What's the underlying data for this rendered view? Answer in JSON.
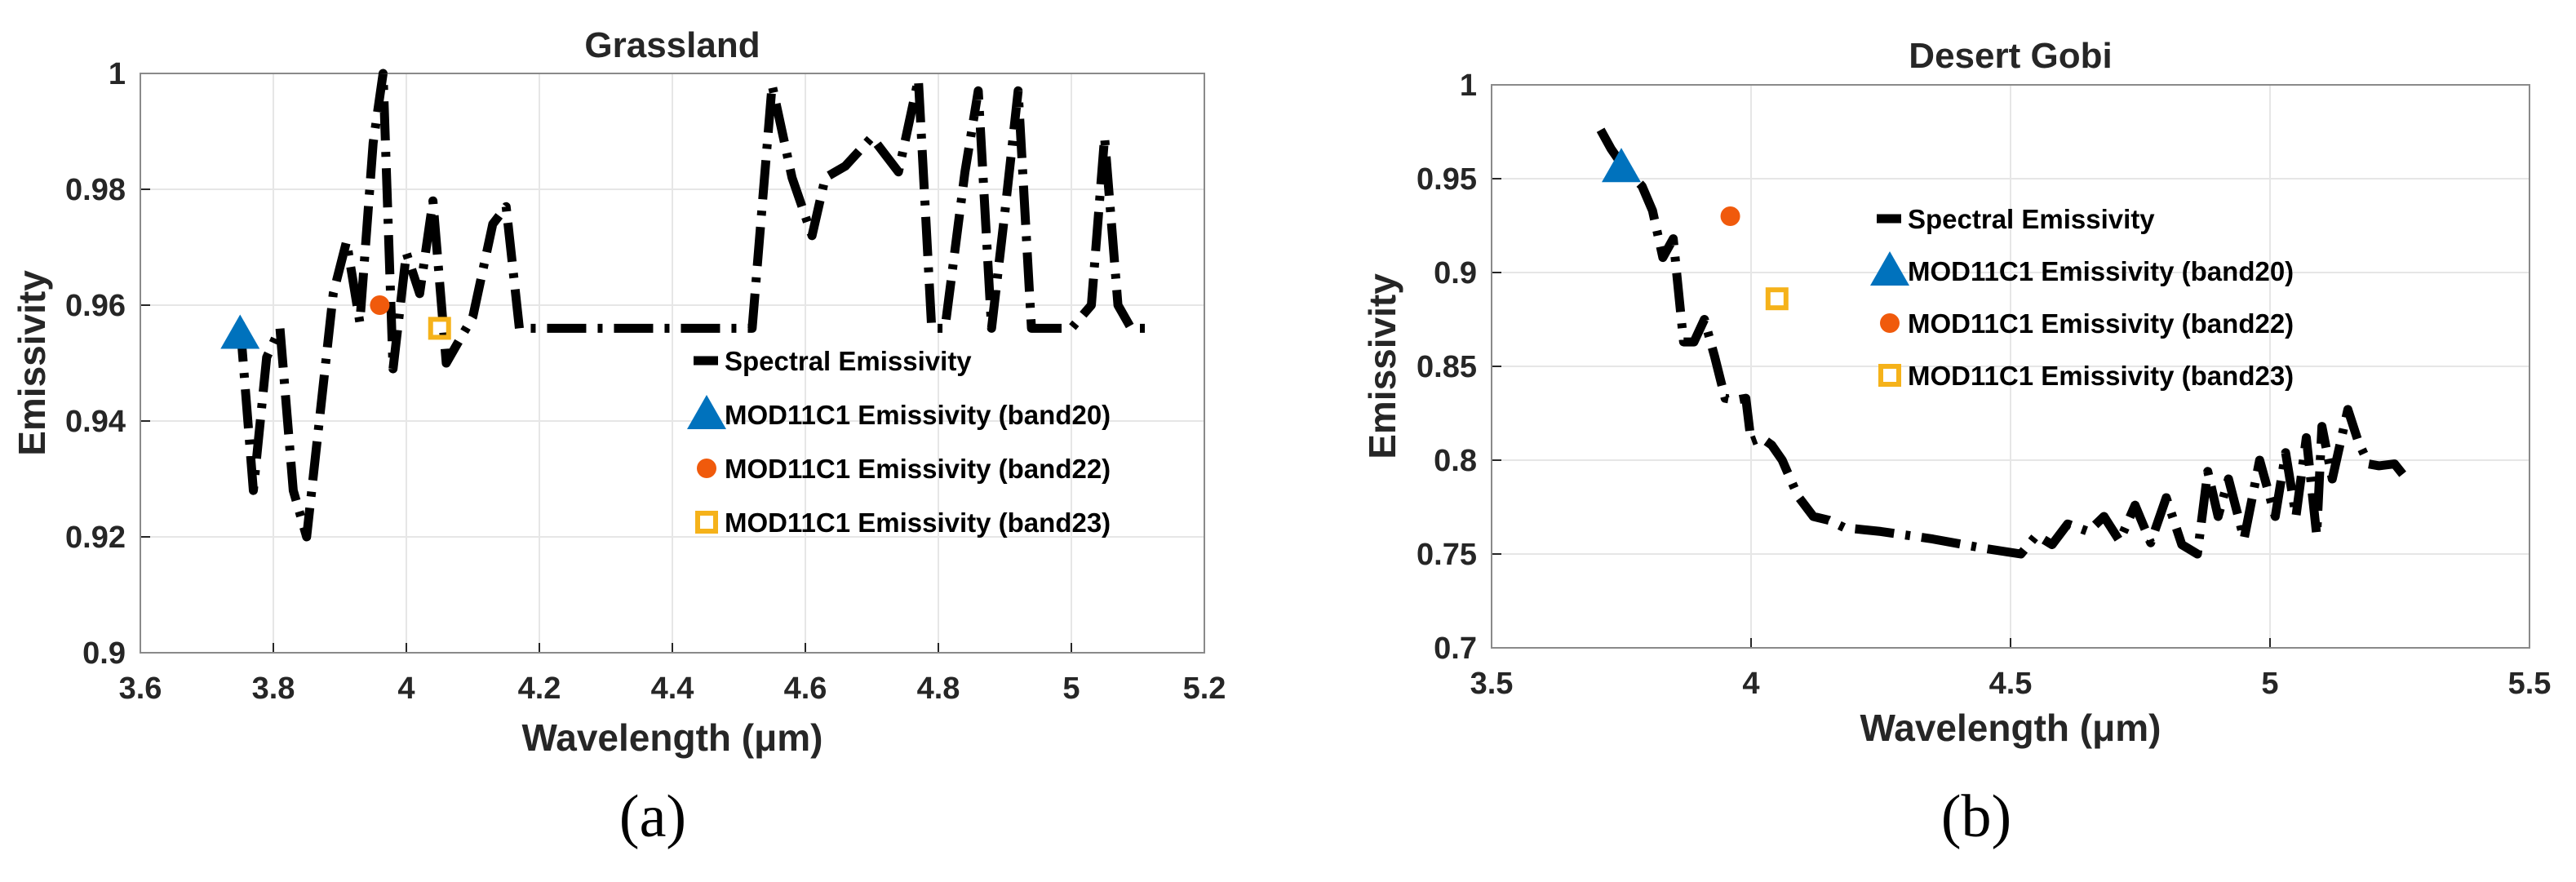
{
  "chart_data": [
    {
      "type": "line",
      "panel_label": "(a)",
      "title": "Grassland",
      "xlabel": "Wavelength (μm)",
      "ylabel": "Emissivity",
      "xlim": [
        3.6,
        5.2
      ],
      "ylim": [
        0.9,
        1.0
      ],
      "xticks": [
        "3.6",
        "3.8",
        "4",
        "4.2",
        "4.4",
        "4.6",
        "4.8",
        "5",
        "5.2"
      ],
      "yticks": [
        "0.9",
        "0.92",
        "0.94",
        "0.96",
        "0.98",
        "1"
      ],
      "grid": true,
      "legend_position": "center-right",
      "series": [
        {
          "name": "Spectral Emissivity",
          "kind": "line",
          "color": "#000000",
          "points": [
            [
              3.75,
              0.957
            ],
            [
              3.77,
              0.928
            ],
            [
              3.79,
              0.951
            ],
            [
              3.81,
              0.956
            ],
            [
              3.83,
              0.928
            ],
            [
              3.85,
              0.92
            ],
            [
              3.87,
              0.941
            ],
            [
              3.89,
              0.962
            ],
            [
              3.91,
              0.971
            ],
            [
              3.93,
              0.957
            ],
            [
              3.95,
              0.988
            ],
            [
              3.965,
              1.0
            ],
            [
              3.98,
              0.949
            ],
            [
              4.0,
              0.969
            ],
            [
              4.02,
              0.962
            ],
            [
              4.04,
              0.978
            ],
            [
              4.06,
              0.95
            ],
            [
              4.08,
              0.954
            ],
            [
              4.1,
              0.958
            ],
            [
              4.13,
              0.974
            ],
            [
              4.15,
              0.977
            ],
            [
              4.17,
              0.956
            ],
            [
              4.3,
              0.956
            ],
            [
              4.45,
              0.956
            ],
            [
              4.52,
              0.956
            ],
            [
              4.55,
              0.998
            ],
            [
              4.58,
              0.982
            ],
            [
              4.61,
              0.972
            ],
            [
              4.63,
              0.982
            ],
            [
              4.66,
              0.984
            ],
            [
              4.7,
              0.989
            ],
            [
              4.74,
              0.983
            ],
            [
              4.77,
              0.999
            ],
            [
              4.79,
              0.956
            ],
            [
              4.81,
              0.956
            ],
            [
              4.84,
              0.983
            ],
            [
              4.86,
              0.997
            ],
            [
              4.88,
              0.956
            ],
            [
              4.9,
              0.976
            ],
            [
              4.92,
              0.997
            ],
            [
              4.94,
              0.956
            ],
            [
              4.97,
              0.956
            ],
            [
              5.0,
              0.956
            ],
            [
              5.03,
              0.96
            ],
            [
              5.05,
              0.989
            ],
            [
              5.07,
              0.96
            ],
            [
              5.09,
              0.956
            ],
            [
              5.12,
              0.956
            ]
          ]
        },
        {
          "name": "MOD11C1 Emissivity (band20)",
          "kind": "marker",
          "marker": "triangle",
          "color": "#0072bd",
          "points": [
            [
              3.75,
              0.955
            ]
          ]
        },
        {
          "name": "MOD11C1 Emissivity (band22)",
          "kind": "marker",
          "marker": "circle",
          "color": "#f05a0c",
          "points": [
            [
              3.96,
              0.96
            ]
          ]
        },
        {
          "name": "MOD11C1 Emissivity (band23)",
          "kind": "marker",
          "marker": "square",
          "color": "#f5b21a",
          "points": [
            [
              4.05,
              0.956
            ]
          ]
        }
      ]
    },
    {
      "type": "line",
      "panel_label": "(b)",
      "title": "Desert Gobi",
      "xlabel": "Wavelength (μm)",
      "ylabel": "Emissivity",
      "xlim": [
        3.5,
        5.5
      ],
      "ylim": [
        0.7,
        1.0
      ],
      "xticks": [
        "3.5",
        "4",
        "4.5",
        "5",
        "5.5"
      ],
      "yticks": [
        "0.7",
        "0.75",
        "0.8",
        "0.85",
        "0.9",
        "0.95",
        "1"
      ],
      "grid": true,
      "legend_position": "upper-center",
      "series": [
        {
          "name": "Spectral Emissivity",
          "kind": "line",
          "color": "#000000",
          "points": [
            [
              3.71,
              0.976
            ],
            [
              3.73,
              0.966
            ],
            [
              3.75,
              0.958
            ],
            [
              3.77,
              0.952
            ],
            [
              3.79,
              0.946
            ],
            [
              3.81,
              0.933
            ],
            [
              3.83,
              0.908
            ],
            [
              3.85,
              0.918
            ],
            [
              3.87,
              0.863
            ],
            [
              3.89,
              0.863
            ],
            [
              3.91,
              0.875
            ],
            [
              3.93,
              0.855
            ],
            [
              3.95,
              0.833
            ],
            [
              3.97,
              0.832
            ],
            [
              3.99,
              0.833
            ],
            [
              4.0,
              0.81
            ],
            [
              4.02,
              0.812
            ],
            [
              4.04,
              0.808
            ],
            [
              4.06,
              0.8
            ],
            [
              4.09,
              0.781
            ],
            [
              4.12,
              0.77
            ],
            [
              4.15,
              0.768
            ],
            [
              4.18,
              0.764
            ],
            [
              4.25,
              0.762
            ],
            [
              4.35,
              0.758
            ],
            [
              4.45,
              0.753
            ],
            [
              4.52,
              0.75
            ],
            [
              4.55,
              0.76
            ],
            [
              4.58,
              0.755
            ],
            [
              4.61,
              0.766
            ],
            [
              4.65,
              0.762
            ],
            [
              4.68,
              0.77
            ],
            [
              4.71,
              0.757
            ],
            [
              4.74,
              0.776
            ],
            [
              4.77,
              0.756
            ],
            [
              4.8,
              0.78
            ],
            [
              4.83,
              0.755
            ],
            [
              4.86,
              0.75
            ],
            [
              4.88,
              0.794
            ],
            [
              4.9,
              0.77
            ],
            [
              4.92,
              0.79
            ],
            [
              4.95,
              0.758
            ],
            [
              4.98,
              0.8
            ],
            [
              5.01,
              0.77
            ],
            [
              5.03,
              0.804
            ],
            [
              5.05,
              0.77
            ],
            [
              5.07,
              0.812
            ],
            [
              5.09,
              0.76
            ],
            [
              5.1,
              0.818
            ],
            [
              5.12,
              0.79
            ],
            [
              5.15,
              0.827
            ],
            [
              5.17,
              0.81
            ],
            [
              5.19,
              0.798
            ],
            [
              5.21,
              0.797
            ],
            [
              5.24,
              0.798
            ],
            [
              5.26,
              0.791
            ]
          ]
        },
        {
          "name": "MOD11C1 Emissivity (band20)",
          "kind": "marker",
          "marker": "triangle",
          "color": "#0072bd",
          "points": [
            [
              3.75,
              0.956
            ]
          ]
        },
        {
          "name": "MOD11C1 Emissivity (band22)",
          "kind": "marker",
          "marker": "circle",
          "color": "#f05a0c",
          "points": [
            [
              3.96,
              0.93
            ]
          ]
        },
        {
          "name": "MOD11C1 Emissivity (band23)",
          "kind": "marker",
          "marker": "square",
          "color": "#f5b21a",
          "points": [
            [
              4.05,
              0.886
            ]
          ]
        }
      ]
    }
  ]
}
